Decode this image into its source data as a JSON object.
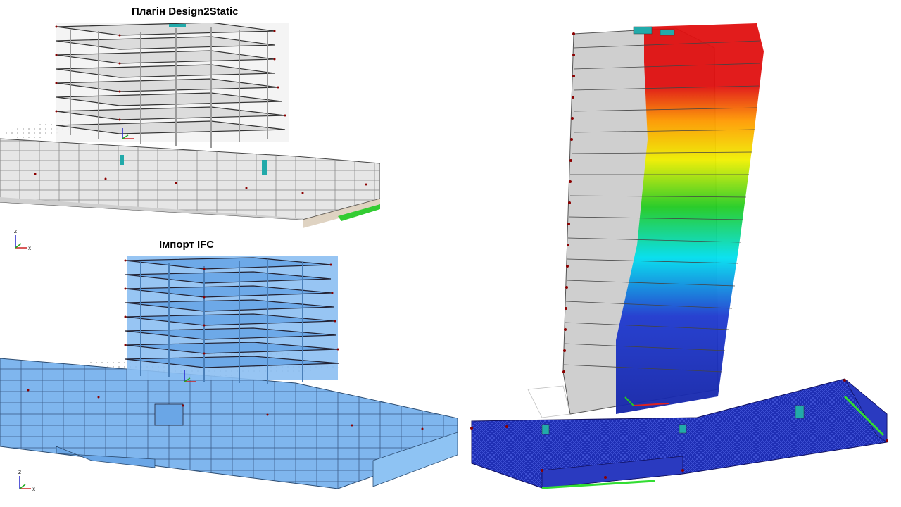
{
  "titles": {
    "top": "Плагін Design2Static",
    "bottom": "Імпорт IFC"
  },
  "axes": {
    "z": "Z",
    "x": "X"
  },
  "colors": {
    "gray_model": "#d9d9d9",
    "ifc_blue": "#7fb6ee",
    "mesh_blue": "#1f2fb5",
    "result_red": "#e01010",
    "result_orange": "#ff9a00",
    "result_yellow": "#f0f000",
    "result_green": "#22cc22",
    "result_cyan": "#00e0f0"
  }
}
